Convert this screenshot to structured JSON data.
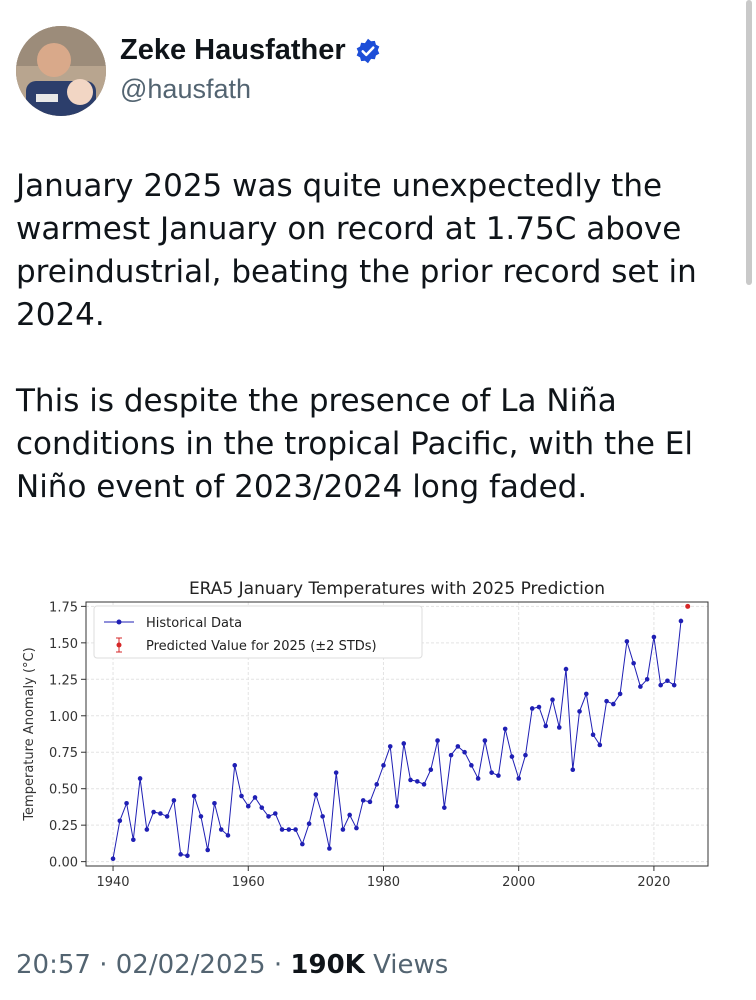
{
  "author": {
    "name": "Zeke Hausfather",
    "handle": "@hausfath",
    "verified_color": "#1d4ed8"
  },
  "tweet": {
    "text": "January 2025 was quite unexpectedly the warmest January on record at 1.75C above preindustrial, beating the prior record set in 2024.\n\nThis is despite the presence of La Niña conditions in the tropical Pacific, with the El Niño event of 2023/2024 long faded."
  },
  "meta": {
    "time": "20:57",
    "date": "02/02/2025",
    "views_count": "190K",
    "views_label": "Views"
  },
  "chart_data": {
    "type": "line",
    "title": "ERA5 January Temperatures with 2025 Prediction",
    "xlabel": "",
    "ylabel": "Temperature Anomaly (°C)",
    "xlim": [
      1936,
      2028
    ],
    "ylim": [
      -0.03,
      1.78
    ],
    "xticks": [
      "1940",
      "1960",
      "1980",
      "2000",
      "2020"
    ],
    "yticks": [
      "0.00",
      "0.25",
      "0.50",
      "0.75",
      "1.00",
      "1.25",
      "1.50",
      "1.75"
    ],
    "grid": true,
    "legend_position": "top-left",
    "series": [
      {
        "name": "Historical Data",
        "color": "#1f1fb4",
        "x": [
          1940,
          1941,
          1942,
          1943,
          1944,
          1945,
          1946,
          1947,
          1948,
          1949,
          1950,
          1951,
          1952,
          1953,
          1954,
          1955,
          1956,
          1957,
          1958,
          1959,
          1960,
          1961,
          1962,
          1963,
          1964,
          1965,
          1966,
          1967,
          1968,
          1969,
          1970,
          1971,
          1972,
          1973,
          1974,
          1975,
          1976,
          1977,
          1978,
          1979,
          1980,
          1981,
          1982,
          1983,
          1984,
          1985,
          1986,
          1987,
          1988,
          1989,
          1990,
          1991,
          1992,
          1993,
          1994,
          1995,
          1996,
          1997,
          1998,
          1999,
          2000,
          2001,
          2002,
          2003,
          2004,
          2005,
          2006,
          2007,
          2008,
          2009,
          2010,
          2011,
          2012,
          2013,
          2014,
          2015,
          2016,
          2017,
          2018,
          2019,
          2020,
          2021,
          2022,
          2023,
          2024
        ],
        "y": [
          0.02,
          0.28,
          0.4,
          0.15,
          0.57,
          0.22,
          0.34,
          0.33,
          0.31,
          0.42,
          0.05,
          0.04,
          0.45,
          0.31,
          0.08,
          0.4,
          0.22,
          0.18,
          0.66,
          0.45,
          0.38,
          0.44,
          0.37,
          0.31,
          0.33,
          0.22,
          0.22,
          0.22,
          0.12,
          0.26,
          0.46,
          0.31,
          0.09,
          0.61,
          0.22,
          0.32,
          0.23,
          0.42,
          0.41,
          0.53,
          0.66,
          0.79,
          0.38,
          0.81,
          0.56,
          0.55,
          0.53,
          0.63,
          0.83,
          0.37,
          0.73,
          0.79,
          0.75,
          0.66,
          0.57,
          0.83,
          0.61,
          0.59,
          0.91,
          0.72,
          0.57,
          0.73,
          1.05,
          1.06,
          0.93,
          1.11,
          0.92,
          1.32,
          0.63,
          1.03,
          1.15,
          0.87,
          0.8,
          1.1,
          1.08,
          1.15,
          1.51,
          1.36,
          1.2,
          1.25,
          1.54,
          1.21,
          1.24,
          1.21,
          1.65
        ]
      },
      {
        "name": "Predicted Value for 2025 (±2 STDs)",
        "color": "#d62728",
        "x": [
          2025
        ],
        "y": [
          1.75
        ]
      }
    ]
  }
}
